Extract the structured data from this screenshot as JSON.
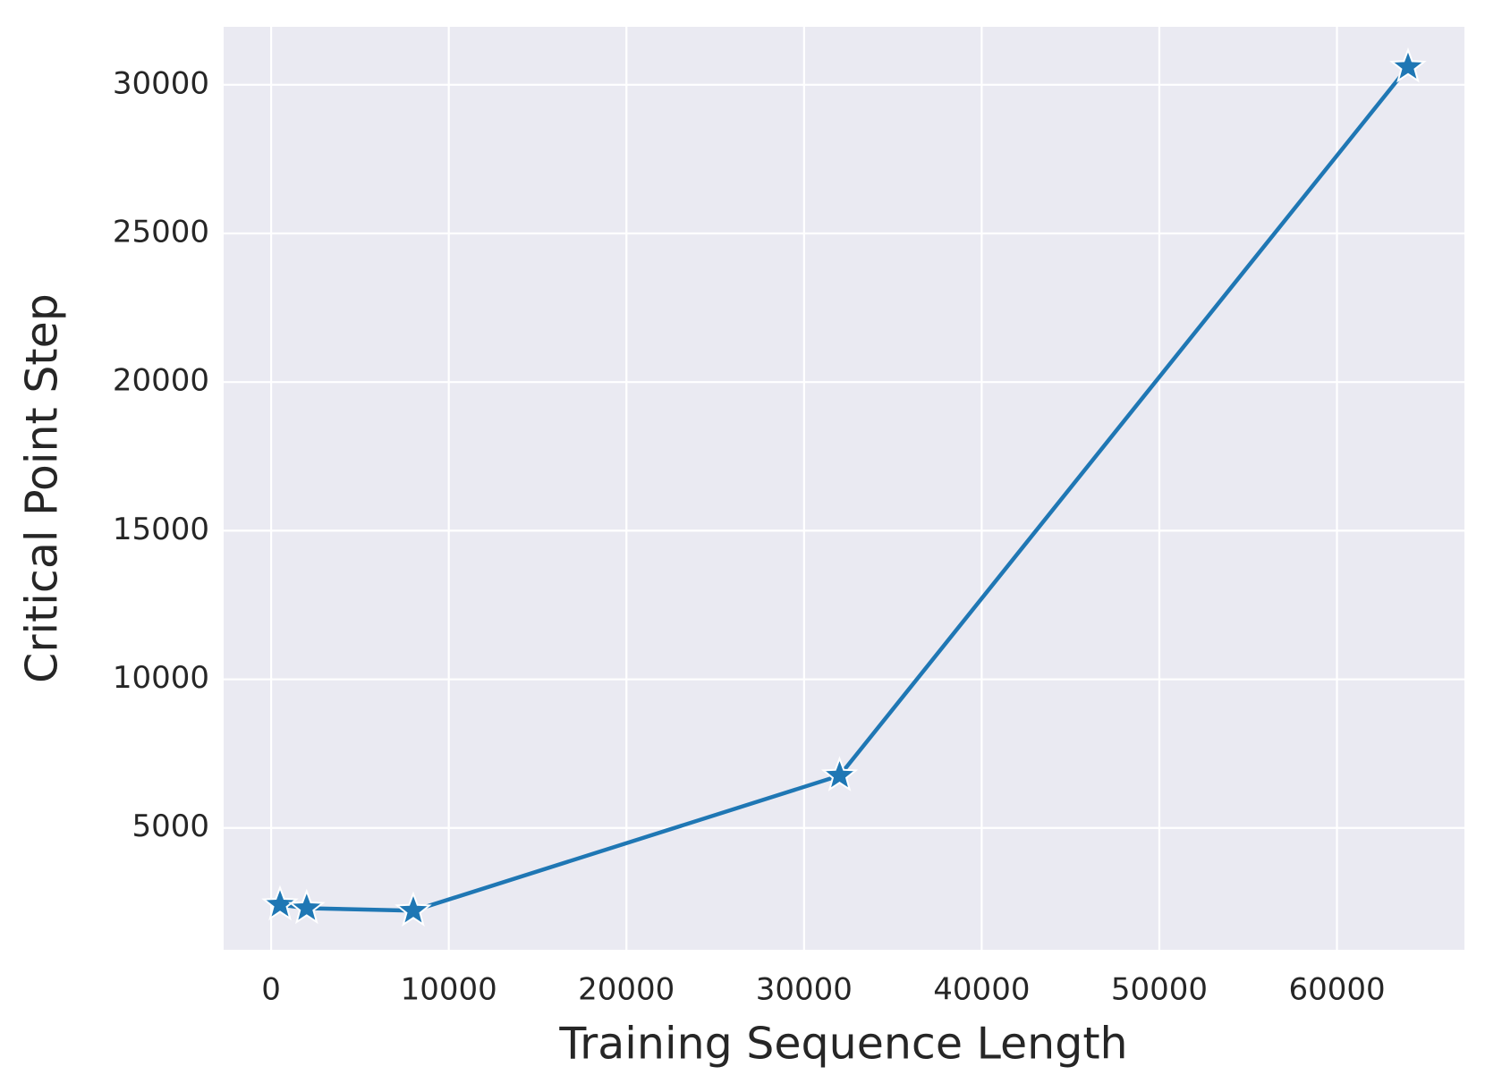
{
  "chart_data": {
    "type": "line",
    "x_label": "Training Sequence Length",
    "y_label": "Critical Point Step",
    "x": [
      500,
      2000,
      8000,
      32000,
      64000
    ],
    "series": [
      {
        "name": "Critical Point Step",
        "color": "#1f77b4",
        "values": [
          2420,
          2300,
          2215,
          6760,
          30600
        ]
      }
    ],
    "xlim": [
      -2675,
      67175
    ],
    "ylim": [
      900,
      31950
    ],
    "xticks": [
      0,
      10000,
      20000,
      30000,
      40000,
      50000,
      60000
    ],
    "yticks": [
      5000,
      10000,
      15000,
      20000,
      25000,
      30000
    ],
    "grid": true,
    "background": "#eaeaf2",
    "marker": "star"
  }
}
